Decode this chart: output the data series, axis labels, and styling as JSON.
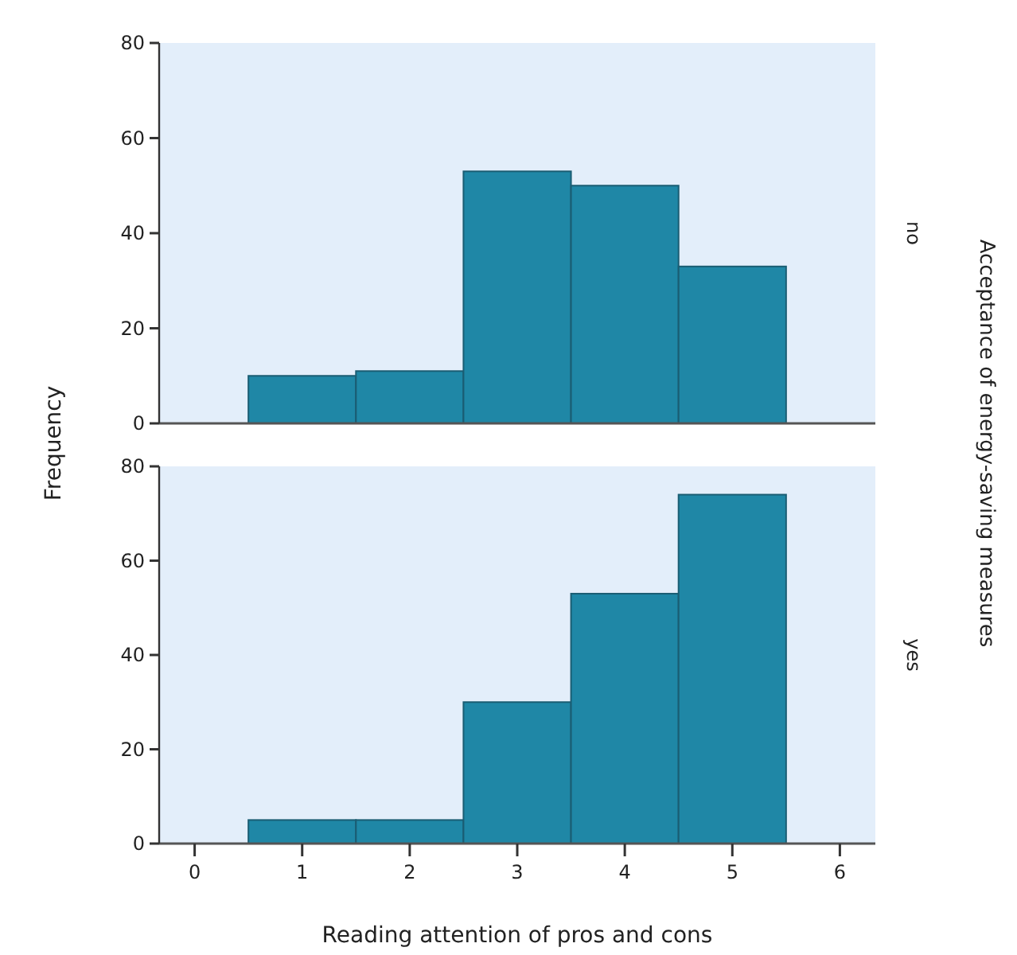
{
  "chart_data": [
    {
      "type": "histogram",
      "y2label": "no",
      "ylabel": "Frequency",
      "annotations": [
        "Acceptance of energy-saving measures"
      ],
      "bins": [
        0.5,
        1.5,
        2.5,
        3.5,
        4.5,
        5.5
      ],
      "values": [
        10,
        11,
        53,
        50,
        33
      ],
      "color": "#1f87a6",
      "xlim": [
        -0.33,
        6.33
      ],
      "ylim": [
        0,
        80
      ],
      "yticks": [
        0,
        20,
        40,
        60,
        80
      ],
      "tick_labels": "y",
      "grid": false
    },
    {
      "type": "histogram",
      "y2label": "yes",
      "xlabel": "Reading attention of pros and cons",
      "bins": [
        0.5,
        1.5,
        2.5,
        3.5,
        4.5,
        5.5
      ],
      "values": [
        5,
        5,
        30,
        53,
        74
      ],
      "color": "#1f87a6",
      "xlim": [
        -0.33,
        6.33
      ],
      "xticks": [
        0,
        1,
        2,
        3,
        4,
        5,
        6
      ],
      "ylim": [
        0,
        80
      ],
      "yticks": [
        0,
        20,
        40,
        60,
        80
      ],
      "grid": false
    }
  ]
}
